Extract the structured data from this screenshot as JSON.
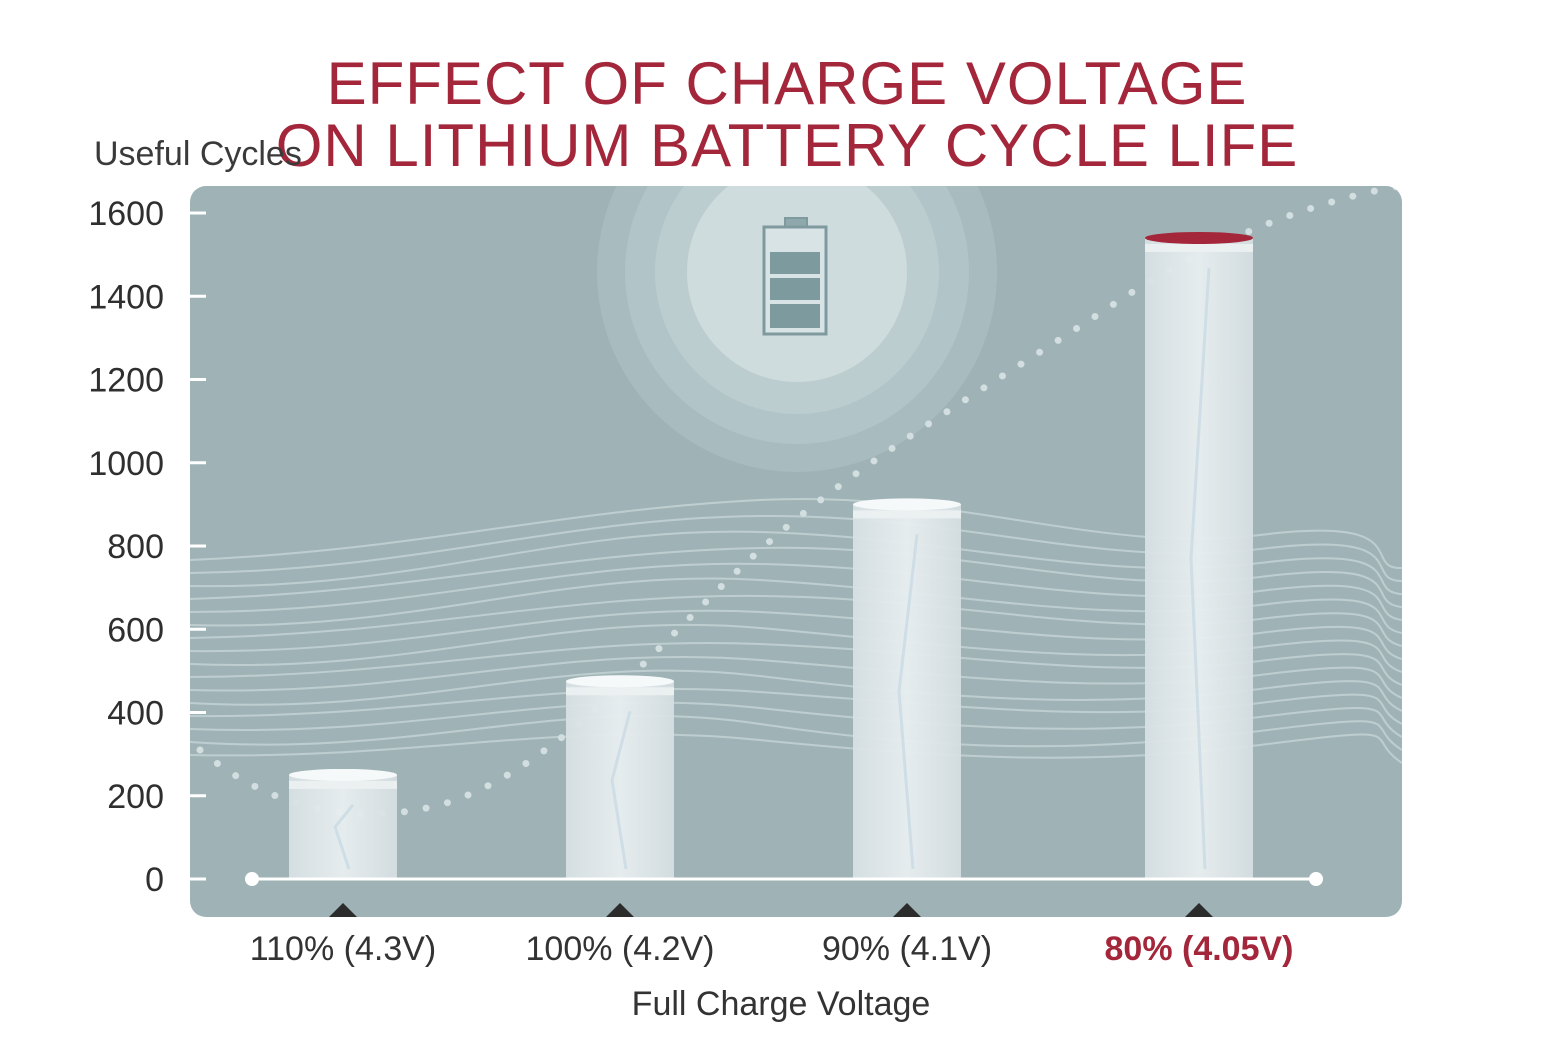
{
  "chart_data": {
    "type": "bar",
    "title_lines": [
      "EFFECT OF CHARGE VOLTAGE",
      "ON LITHIUM BATTERY CYCLE LIFE"
    ],
    "ylabel": "Useful Cycles",
    "xlabel": "Full Charge Voltage",
    "categories": [
      "110% (4.3V)",
      "100% (4.2V)",
      "90% (4.1V)",
      "80% (4.05V)"
    ],
    "values": [
      250,
      475,
      900,
      1540
    ],
    "highlight_index": 3,
    "ylim": [
      0,
      1600
    ],
    "yticks": [
      0,
      200,
      400,
      600,
      800,
      1000,
      1200,
      1400,
      1600
    ],
    "grid": false,
    "icon": "battery-icon",
    "colors": {
      "title": "#a3263a",
      "panel": "#9fb3b6",
      "bar": "#dfe6e8",
      "highlight_cap": "#a3263a",
      "highlight_label": "#a3263a",
      "text": "#333333"
    }
  }
}
